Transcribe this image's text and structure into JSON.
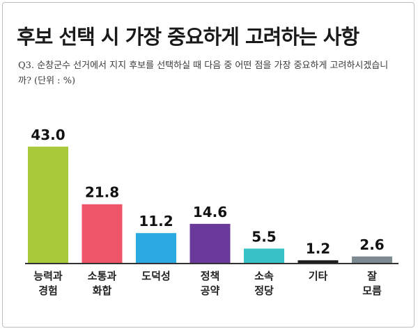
{
  "chart_data": {
    "type": "bar",
    "title": "후보 선택 시 가장 중요하게 고려하는 사항",
    "subtitle": "Q3. 순창군수 선거에서 지지 후보를 선택하실 때 다음 중 어떤 점을 가장 중요하게 고려하시겠습니까? (단위 : %)",
    "categories": [
      [
        "능력과",
        "경험"
      ],
      [
        "소통과",
        "화합"
      ],
      [
        "도덕성"
      ],
      [
        "정책",
        "공약"
      ],
      [
        "소속",
        "정당"
      ],
      [
        "기타"
      ],
      [
        "잘",
        "모름"
      ]
    ],
    "values": [
      43.0,
      21.8,
      11.2,
      14.6,
      5.5,
      1.2,
      2.6
    ],
    "value_labels": [
      "43.0",
      "21.8",
      "11.2",
      "14.6",
      "5.5",
      "1.2",
      "2.6"
    ],
    "colors": [
      "#a7c93a",
      "#ee5568",
      "#2aa8e0",
      "#6a3a9a",
      "#38c2c6",
      "#1c1c1c",
      "#7d8a92"
    ],
    "xlabel": "",
    "ylabel": "",
    "ylim": [
      0,
      45
    ]
  }
}
